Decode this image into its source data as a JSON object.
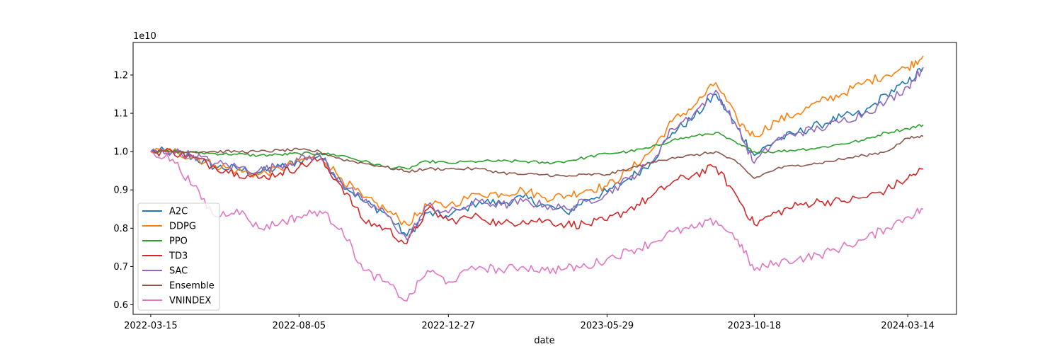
{
  "chart_data": {
    "type": "line",
    "title": "",
    "xlabel": "date",
    "ylabel": "",
    "y_offset_label": "1e10",
    "x_ticks": [
      "2022-03-15",
      "2022-08-05",
      "2022-12-27",
      "2023-05-29",
      "2023-10-18",
      "2024-03-14"
    ],
    "y_ticks": [
      "0.6",
      "0.7",
      "0.8",
      "0.9",
      "1.0",
      "1.1",
      "1.2"
    ],
    "xlim": [
      "2022-02-26",
      "2024-04-30"
    ],
    "ylim": [
      0.575,
      1.285
    ],
    "grid": false,
    "legend_position": "lower-left",
    "x": [
      "2022-03-15",
      "2022-04-05",
      "2022-04-25",
      "2022-05-16",
      "2022-06-06",
      "2022-06-27",
      "2022-07-18",
      "2022-08-05",
      "2022-08-25",
      "2022-09-15",
      "2022-10-06",
      "2022-10-27",
      "2022-11-17",
      "2022-12-07",
      "2022-12-27",
      "2023-01-26",
      "2023-02-16",
      "2023-03-09",
      "2023-03-30",
      "2023-04-20",
      "2023-05-09",
      "2023-05-29",
      "2023-06-19",
      "2023-07-10",
      "2023-07-31",
      "2023-08-21",
      "2023-09-11",
      "2023-10-02",
      "2023-10-18",
      "2023-11-08",
      "2023-11-29",
      "2023-12-20",
      "2024-01-10",
      "2024-02-01",
      "2024-02-22",
      "2024-03-14",
      "2024-03-29"
    ],
    "series": [
      {
        "name": "A2C",
        "color": "#1f77b4",
        "values": [
          1.0,
          1.0,
          0.985,
          0.96,
          0.955,
          0.945,
          0.96,
          0.975,
          0.99,
          0.92,
          0.87,
          0.84,
          0.78,
          0.84,
          0.83,
          0.87,
          0.865,
          0.88,
          0.86,
          0.84,
          0.875,
          0.895,
          0.93,
          0.97,
          1.05,
          1.09,
          1.15,
          1.06,
          0.99,
          1.03,
          1.05,
          1.07,
          1.09,
          1.1,
          1.15,
          1.18,
          1.22
        ]
      },
      {
        "name": "DDPG",
        "color": "#ff7f0e",
        "values": [
          1.0,
          1.0,
          0.985,
          0.965,
          0.95,
          0.94,
          0.955,
          0.975,
          0.99,
          0.93,
          0.88,
          0.85,
          0.81,
          0.86,
          0.86,
          0.89,
          0.89,
          0.9,
          0.88,
          0.885,
          0.9,
          0.91,
          0.95,
          1.0,
          1.08,
          1.12,
          1.18,
          1.08,
          1.04,
          1.08,
          1.1,
          1.13,
          1.15,
          1.18,
          1.2,
          1.22,
          1.25
        ]
      },
      {
        "name": "PPO",
        "color": "#2ca02c",
        "values": [
          1.0,
          1.0,
          0.998,
          0.995,
          0.993,
          0.99,
          0.992,
          0.995,
          0.995,
          0.99,
          0.975,
          0.96,
          0.955,
          0.975,
          0.97,
          0.975,
          0.975,
          0.975,
          0.97,
          0.975,
          0.985,
          0.995,
          1.0,
          1.01,
          1.03,
          1.04,
          1.05,
          1.02,
          1.0,
          1.0,
          1.005,
          1.01,
          1.02,
          1.03,
          1.05,
          1.06,
          1.07
        ]
      },
      {
        "name": "TD3",
        "color": "#d62728",
        "values": [
          1.0,
          1.0,
          0.985,
          0.96,
          0.945,
          0.93,
          0.945,
          0.96,
          0.98,
          0.91,
          0.82,
          0.8,
          0.76,
          0.85,
          0.82,
          0.83,
          0.81,
          0.82,
          0.82,
          0.81,
          0.81,
          0.82,
          0.85,
          0.88,
          0.92,
          0.94,
          0.96,
          0.88,
          0.81,
          0.84,
          0.86,
          0.87,
          0.87,
          0.88,
          0.9,
          0.93,
          0.955
        ]
      },
      {
        "name": "SAC",
        "color": "#9467bd",
        "values": [
          1.0,
          1.0,
          0.99,
          0.97,
          0.96,
          0.95,
          0.965,
          0.98,
          0.99,
          0.92,
          0.87,
          0.84,
          0.77,
          0.86,
          0.84,
          0.87,
          0.86,
          0.87,
          0.86,
          0.85,
          0.87,
          0.89,
          0.93,
          0.97,
          1.06,
          1.1,
          1.16,
          1.06,
          0.97,
          1.03,
          1.05,
          1.06,
          1.08,
          1.1,
          1.13,
          1.17,
          1.22
        ]
      },
      {
        "name": "Ensemble",
        "color": "#8c564b",
        "values": [
          1.0,
          1.0,
          1.0,
          1.0,
          1.0,
          1.0,
          1.003,
          1.005,
          1.0,
          0.98,
          0.97,
          0.96,
          0.948,
          0.955,
          0.955,
          0.955,
          0.945,
          0.94,
          0.94,
          0.935,
          0.94,
          0.94,
          0.955,
          0.97,
          0.985,
          0.99,
          1.0,
          0.97,
          0.93,
          0.955,
          0.965,
          0.97,
          0.98,
          0.99,
          1.0,
          1.035,
          1.04
        ]
      },
      {
        "name": "VNINDEX",
        "color": "#e377c2",
        "values": [
          1.0,
          0.98,
          0.91,
          0.83,
          0.85,
          0.8,
          0.815,
          0.83,
          0.845,
          0.8,
          0.69,
          0.66,
          0.61,
          0.69,
          0.66,
          0.7,
          0.69,
          0.7,
          0.69,
          0.695,
          0.7,
          0.72,
          0.74,
          0.76,
          0.79,
          0.8,
          0.82,
          0.77,
          0.69,
          0.71,
          0.72,
          0.73,
          0.75,
          0.77,
          0.8,
          0.83,
          0.85
        ]
      }
    ]
  }
}
